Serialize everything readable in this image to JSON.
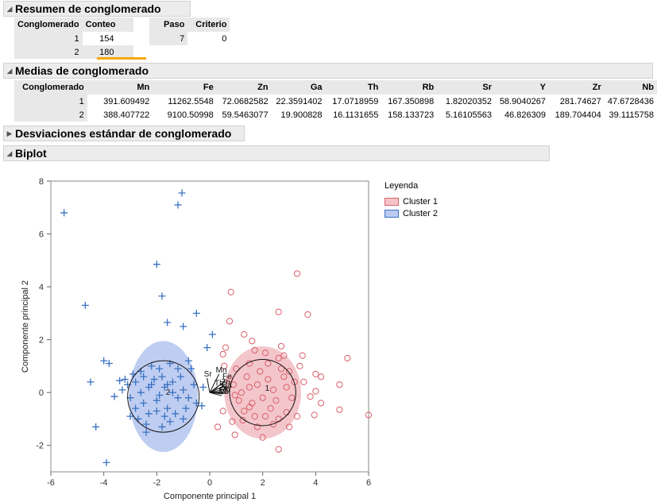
{
  "summary": {
    "title": "Resumen de conglomerado",
    "headers": [
      "Conglomerado",
      "Conteo"
    ],
    "rows": [
      [
        "1",
        "154"
      ],
      [
        "2",
        "180"
      ]
    ],
    "step_headers": [
      "Paso",
      "Criterio"
    ],
    "step_row": [
      "7",
      "0"
    ]
  },
  "means": {
    "title": "Medias de conglomerado",
    "headers": [
      "Conglomerado",
      "Mn",
      "Fe",
      "Zn",
      "Ga",
      "Th",
      "Rb",
      "Sr",
      "Y",
      "Zr",
      "Nb"
    ],
    "rows": [
      [
        "1",
        "391.609492",
        "11262.5548",
        "72.0682582",
        "22.3591402",
        "17.0718959",
        "167.350898",
        "1.82020352",
        "58.9040267",
        "281.74627",
        "47.6728436"
      ],
      [
        "2",
        "388.407722",
        "9100.50998",
        "59.5463077",
        "19.900828",
        "16.1131655",
        "158.133723",
        "5.16105563",
        "46.826309",
        "189.704404",
        "39.1115758"
      ]
    ]
  },
  "std": {
    "title": "Desviaciones estándar de conglomerado"
  },
  "biplot": {
    "title": "Biplot",
    "legend_title": "Leyenda",
    "legend_items": [
      "Cluster 1",
      "Cluster 2"
    ],
    "ray_labels": [
      "Mn",
      "Fe",
      "Sr",
      "Zn",
      "Ga",
      "Zr",
      "Rb",
      "Nb",
      "Y",
      "Th"
    ]
  },
  "colors": {
    "cluster1": "#d9606a",
    "cluster2": "#3a72c2",
    "accent": "#f5a800"
  },
  "chart_data": {
    "type": "scatter",
    "xlabel": "Componente principal 1",
    "ylabel": "Componente principal 2",
    "xlim": [
      -6,
      6
    ],
    "ylim": [
      -3,
      8
    ],
    "xticks": [
      -6,
      -4,
      -2,
      0,
      2,
      4,
      6
    ],
    "yticks": [
      -2,
      0,
      2,
      4,
      6,
      8
    ],
    "grid": false,
    "legend": "right",
    "series": [
      {
        "name": "Cluster 1",
        "marker": "circle",
        "center": [
          2.0,
          0.0
        ],
        "ellipse_radii": [
          1.45,
          1.75
        ],
        "circle_radius": 1.25,
        "points": [
          [
            3.3,
            4.5
          ],
          [
            3.7,
            2.95
          ],
          [
            0.8,
            3.8
          ],
          [
            2.6,
            3.05
          ],
          [
            0.75,
            2.7
          ],
          [
            1.3,
            2.2
          ],
          [
            0.6,
            1.7
          ],
          [
            1.7,
            1.6
          ],
          [
            0.5,
            1.45
          ],
          [
            2.1,
            1.5
          ],
          [
            2.6,
            1.3
          ],
          [
            2.8,
            1.4
          ],
          [
            3.5,
            1.4
          ],
          [
            5.2,
            1.3
          ],
          [
            4.0,
            0.7
          ],
          [
            4.2,
            0.6
          ],
          [
            4.9,
            0.3
          ],
          [
            4.0,
            0.05
          ],
          [
            3.8,
            -0.15
          ],
          [
            4.2,
            -0.4
          ],
          [
            4.9,
            -0.65
          ],
          [
            3.95,
            -0.85
          ],
          [
            6.0,
            -0.85
          ],
          [
            0.5,
            -0.7
          ],
          [
            0.85,
            -1.1
          ],
          [
            0.3,
            -1.3
          ],
          [
            0.95,
            -1.6
          ],
          [
            2.6,
            -2.15
          ],
          [
            1.25,
            -1.05
          ],
          [
            1.5,
            -0.55
          ],
          [
            2.9,
            -0.75
          ],
          [
            3.3,
            -0.9
          ],
          [
            3.55,
            0.4
          ],
          [
            3.4,
            1.0
          ],
          [
            0.55,
            1.0
          ],
          [
            0.75,
            0.5
          ],
          [
            1.6,
            1.95
          ],
          [
            2.7,
            1.75
          ],
          [
            3.0,
            -1.3
          ],
          [
            2.0,
            -1.7
          ],
          [
            1.0,
            0.9
          ],
          [
            1.4,
            0.6
          ],
          [
            2.2,
            0.5
          ],
          [
            1.8,
            0.3
          ],
          [
            2.4,
            0.1
          ],
          [
            2.0,
            -0.2
          ],
          [
            1.6,
            -0.4
          ],
          [
            2.3,
            -0.6
          ],
          [
            1.2,
            0.0
          ],
          [
            2.8,
            0.6
          ],
          [
            1.9,
            0.8
          ],
          [
            2.5,
            -0.3
          ],
          [
            1.1,
            -0.3
          ],
          [
            2.9,
            0.2
          ],
          [
            1.7,
            -0.9
          ],
          [
            2.6,
            -1.0
          ],
          [
            1.5,
            1.1
          ],
          [
            3.1,
            -0.2
          ],
          [
            0.9,
            0.3
          ],
          [
            2.2,
            1.1
          ],
          [
            1.3,
            -0.7
          ],
          [
            3.0,
            0.8
          ],
          [
            2.4,
            -1.2
          ],
          [
            1.8,
            -1.3
          ],
          [
            2.7,
            0.9
          ],
          [
            1.5,
            0.2
          ],
          [
            2.1,
            -0.9
          ],
          [
            0.95,
            -0.1
          ],
          [
            3.2,
            0.4
          ]
        ]
      },
      {
        "name": "Cluster 2",
        "marker": "plus",
        "center": [
          -1.75,
          -0.15
        ],
        "ellipse_radii": [
          1.3,
          2.1
        ],
        "circle_radius": 1.35,
        "points": [
          [
            -5.5,
            6.8
          ],
          [
            -1.05,
            7.55
          ],
          [
            -1.2,
            7.1
          ],
          [
            -2.0,
            4.85
          ],
          [
            -1.8,
            3.65
          ],
          [
            -4.7,
            3.3
          ],
          [
            -1.6,
            2.65
          ],
          [
            -0.5,
            3.0
          ],
          [
            -1.0,
            2.5
          ],
          [
            0.1,
            2.2
          ],
          [
            -0.1,
            1.7
          ],
          [
            -4.0,
            1.2
          ],
          [
            -3.8,
            1.1
          ],
          [
            -3.4,
            0.45
          ],
          [
            -4.5,
            0.4
          ],
          [
            -3.2,
            0.5
          ],
          [
            -3.6,
            -0.15
          ],
          [
            -4.3,
            -1.3
          ],
          [
            -3.9,
            -2.65
          ],
          [
            -1.5,
            -1.1
          ],
          [
            -2.4,
            -1.5
          ],
          [
            -0.5,
            -0.4
          ],
          [
            -0.25,
            0.2
          ],
          [
            -0.3,
            -0.5
          ],
          [
            -0.8,
            1.2
          ],
          [
            -1.8,
            0.6
          ],
          [
            -2.2,
            0.3
          ],
          [
            -1.4,
            0.4
          ],
          [
            -2.6,
            0.0
          ],
          [
            -1.0,
            0.1
          ],
          [
            -2.0,
            -0.3
          ],
          [
            -1.6,
            -0.6
          ],
          [
            -2.3,
            -0.8
          ],
          [
            -1.2,
            -0.2
          ],
          [
            -2.8,
            0.4
          ],
          [
            -1.9,
            0.9
          ],
          [
            -2.5,
            -0.4
          ],
          [
            -1.1,
            0.6
          ],
          [
            -3.0,
            -0.2
          ],
          [
            -1.7,
            -0.9
          ],
          [
            -2.7,
            -1.0
          ],
          [
            -1.5,
            1.1
          ],
          [
            -3.1,
            0.3
          ],
          [
            -0.9,
            -0.6
          ],
          [
            -2.2,
            1.0
          ],
          [
            -1.3,
            -0.8
          ],
          [
            -2.9,
            0.7
          ],
          [
            -2.4,
            -1.2
          ],
          [
            -1.8,
            -1.3
          ],
          [
            -0.7,
            0.9
          ],
          [
            -2.1,
            0.5
          ],
          [
            -1.4,
            0.0
          ],
          [
            -2.6,
            0.8
          ],
          [
            -1.9,
            -0.1
          ],
          [
            -0.6,
            0.3
          ],
          [
            -2.0,
            -0.7
          ],
          [
            -3.3,
            0.1
          ],
          [
            -1.2,
            0.9
          ],
          [
            -2.3,
            0.2
          ],
          [
            -1.0,
            -1.0
          ],
          [
            -0.8,
            -0.2
          ],
          [
            -2.8,
            -0.6
          ],
          [
            -1.6,
            0.3
          ],
          [
            -2.5,
            0.6
          ],
          [
            -3.0,
            -0.9
          ],
          [
            -1.7,
            0.2
          ]
        ]
      }
    ],
    "rays": [
      {
        "label": "Mn",
        "to": [
          0.35,
          0.7
        ]
      },
      {
        "label": "Fe",
        "to": [
          0.6,
          0.45
        ]
      },
      {
        "label": "Sr",
        "to": [
          -0.1,
          0.55
        ]
      },
      {
        "label": "Zn",
        "to": [
          0.55,
          0.25
        ]
      },
      {
        "label": "Ga",
        "to": [
          0.55,
          0.12
        ]
      },
      {
        "label": "Zr",
        "to": [
          0.5,
          0.02
        ]
      },
      {
        "label": "Rb",
        "to": [
          0.5,
          -0.05
        ]
      },
      {
        "label": "Nb",
        "to": [
          0.45,
          -0.12
        ]
      },
      {
        "label": "Y",
        "to": [
          0.65,
          -0.03
        ]
      },
      {
        "label": "Th",
        "to": [
          0.3,
          0.2
        ]
      }
    ]
  }
}
